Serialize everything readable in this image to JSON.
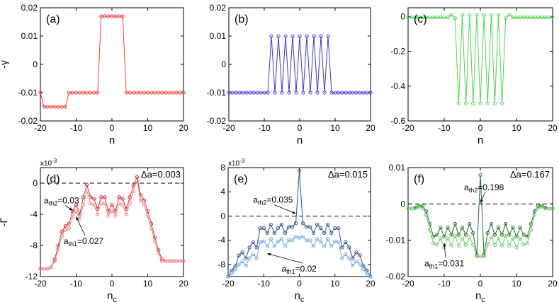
{
  "chart_data": [
    {
      "type": "line",
      "panel_label": "(a)",
      "ylabel": "-γ",
      "xlabel": "n",
      "xlim": [
        -20,
        20
      ],
      "ylim": [
        -0.02,
        0.02
      ],
      "xticks": [
        -20,
        -10,
        0,
        10,
        20
      ],
      "xtick_labels": [
        "-20",
        "-10",
        "0",
        "10",
        "20"
      ],
      "yticks": [
        -0.02,
        -0.01,
        0,
        0.01,
        0.02
      ],
      "ytick_labels": [
        "-0.02",
        "-0.01",
        "0",
        "0.01",
        "0.02"
      ],
      "series": [
        {
          "name": "-γ",
          "color": "#e8413c",
          "x": [
            -20,
            -19,
            -18,
            -17,
            -16,
            -15,
            -14,
            -13,
            -12,
            -11,
            -10,
            -9,
            -8,
            -7,
            -6,
            -5,
            -4,
            -3,
            -2,
            -1,
            0,
            1,
            2,
            3,
            4,
            5,
            6,
            7,
            8,
            9,
            10,
            11,
            12,
            13,
            14,
            15,
            16,
            17,
            18,
            19,
            20
          ],
          "y": [
            -0.01,
            -0.015,
            -0.015,
            -0.015,
            -0.015,
            -0.015,
            -0.015,
            -0.015,
            -0.01,
            -0.01,
            -0.01,
            -0.01,
            -0.01,
            -0.01,
            -0.01,
            -0.01,
            -0.01,
            0.017,
            0.017,
            0.017,
            0.017,
            0.017,
            0.017,
            0.017,
            -0.01,
            -0.01,
            -0.01,
            -0.01,
            -0.01,
            -0.01,
            -0.01,
            -0.01,
            -0.01,
            -0.01,
            -0.01,
            -0.01,
            -0.01,
            -0.01,
            -0.01,
            -0.01,
            -0.01
          ]
        }
      ]
    },
    {
      "type": "line",
      "panel_label": "(b)",
      "xlabel": "n",
      "xlim": [
        -20,
        20
      ],
      "ylim": [
        -0.02,
        0.02
      ],
      "xticks": [
        -20,
        -10,
        0,
        10,
        20
      ],
      "xtick_labels": [
        "-20",
        "-10",
        "0",
        "10",
        "20"
      ],
      "yticks": [
        -0.02,
        -0.01,
        0,
        0.01,
        0.02
      ],
      "ytick_labels": [
        "-0.02",
        "-0.01",
        "0",
        "0.01",
        "0.02"
      ],
      "series": [
        {
          "name": "-γ",
          "color": "#3a3ad0",
          "x": [
            -20,
            -19,
            -18,
            -17,
            -16,
            -15,
            -14,
            -13,
            -12,
            -11,
            -10,
            -9,
            -8,
            -7,
            -6,
            -5,
            -4,
            -3,
            -2,
            -1,
            0,
            1,
            2,
            3,
            4,
            5,
            6,
            7,
            8,
            9,
            10,
            11,
            12,
            13,
            14,
            15,
            16,
            17,
            18,
            19,
            20
          ],
          "y": [
            -0.01,
            -0.01,
            -0.01,
            -0.01,
            -0.01,
            -0.01,
            -0.01,
            -0.01,
            -0.01,
            -0.01,
            -0.01,
            -0.01,
            0.01,
            -0.01,
            0.01,
            -0.01,
            0.01,
            -0.01,
            0.01,
            -0.01,
            0.01,
            -0.01,
            0.01,
            -0.01,
            0.01,
            -0.01,
            0.01,
            -0.01,
            0.01,
            -0.01,
            -0.01,
            -0.01,
            -0.01,
            -0.01,
            -0.01,
            -0.01,
            -0.01,
            -0.01,
            -0.01,
            -0.01,
            -0.01
          ]
        }
      ]
    },
    {
      "type": "line",
      "panel_label": "(c)",
      "xlabel": "n",
      "xlim": [
        -20,
        20
      ],
      "ylim": [
        -0.6,
        0.05
      ],
      "xticks": [
        -20,
        -10,
        0,
        10,
        20
      ],
      "xtick_labels": [
        "-20",
        "-10",
        "0",
        "10",
        "20"
      ],
      "yticks": [
        -0.6,
        -0.4,
        -0.2,
        0
      ],
      "ytick_labels": [
        "-0.6",
        "-0.4",
        "-0.2",
        "0"
      ],
      "series": [
        {
          "name": "-γ",
          "color": "#52d452",
          "x": [
            -20,
            -19,
            -18,
            -17,
            -16,
            -15,
            -14,
            -13,
            -12,
            -11,
            -10,
            -9,
            -8,
            -7,
            -6,
            -5,
            -4,
            -3,
            -2,
            -1,
            0,
            1,
            2,
            3,
            4,
            5,
            6,
            7,
            8,
            9,
            10,
            11,
            12,
            13,
            14,
            15,
            16,
            17,
            18,
            19,
            20
          ],
          "y": [
            -0.005,
            -0.005,
            -0.005,
            -0.005,
            -0.005,
            -0.005,
            -0.005,
            -0.005,
            -0.005,
            -0.005,
            -0.005,
            -0.005,
            0.01,
            -0.01,
            -0.5,
            0.01,
            -0.5,
            0.01,
            -0.5,
            0.01,
            -0.5,
            0.01,
            -0.5,
            0.01,
            -0.5,
            0.01,
            -0.5,
            -0.01,
            0.01,
            -0.005,
            -0.005,
            -0.005,
            -0.005,
            -0.005,
            -0.005,
            -0.005,
            -0.005,
            -0.005,
            -0.005,
            -0.005,
            -0.005
          ]
        }
      ]
    },
    {
      "type": "line",
      "panel_label": "(d)",
      "ylabel": "-Γ",
      "xlabel": "n",
      "xlabel_sub": "c",
      "exponent_label": "x10",
      "exponent_power": "-3",
      "xlim": [
        -20,
        20
      ],
      "ylim": [
        -12,
        2
      ],
      "xticks": [
        -20,
        -10,
        0,
        10,
        20
      ],
      "xtick_labels": [
        "-20",
        "-10",
        "0",
        "10",
        "20"
      ],
      "yticks": [
        -12,
        -8,
        -4,
        0
      ],
      "ytick_labels": [
        "-12",
        "-8",
        "-4",
        "0"
      ],
      "delta_label": "Δa=0.003",
      "dashed_y": 0,
      "annotations": [
        {
          "prefix": "a",
          "sub": "th2",
          "suffix": "=0.03",
          "x": -19,
          "y": -2.6,
          "ax": -11,
          "ay": -3.5
        },
        {
          "prefix": "a",
          "sub": "th1",
          "suffix": "=0.027",
          "x": -13.5,
          "y": -7.8,
          "ax": -10,
          "ay": -4.3
        }
      ],
      "series": [
        {
          "name": "a_th2",
          "color": "#d03030",
          "x": [
            -20,
            -19,
            -18,
            -17,
            -16,
            -15,
            -14,
            -13,
            -12,
            -11,
            -10,
            -9,
            -8,
            -7,
            -6,
            -5,
            -4,
            -3,
            -2,
            -1,
            0,
            1,
            2,
            3,
            4,
            5,
            6,
            7,
            8,
            9,
            10,
            11,
            12,
            13,
            14,
            15,
            16,
            17,
            18,
            19,
            20
          ],
          "y": [
            -11,
            -11,
            -11,
            -10.8,
            -9.8,
            -8,
            -6.2,
            -5.5,
            -5.2,
            -3.6,
            -2.8,
            -4,
            -1.8,
            -0.2,
            -1.8,
            -2,
            -3.3,
            -1.8,
            -1.8,
            -3.6,
            -2.8,
            -3.6,
            -1.8,
            -2,
            -3.3,
            -1.8,
            -0.3,
            0.8,
            -1.5,
            -2.2,
            -3.6,
            -5.2,
            -7,
            -8.6,
            -9.8,
            -10,
            -10,
            -10,
            -10,
            -10,
            -10
          ]
        },
        {
          "name": "a_th1",
          "color": "#f08a8a",
          "x": [
            -20,
            -19,
            -18,
            -17,
            -16,
            -15,
            -14,
            -13,
            -12,
            -11,
            -10,
            -9,
            -8,
            -7,
            -6,
            -5,
            -4,
            -3,
            -2,
            -1,
            0,
            1,
            2,
            3,
            4,
            5,
            6,
            7,
            8,
            9,
            10,
            11,
            12,
            13,
            14,
            15,
            16,
            17,
            18,
            19,
            20
          ],
          "y": [
            -11,
            -11,
            -11,
            -10.8,
            -10,
            -8.5,
            -6.8,
            -6,
            -5.8,
            -4.3,
            -3.6,
            -4.6,
            -2.8,
            -1,
            -2.6,
            -2.8,
            -4,
            -2.6,
            -2.6,
            -4.2,
            -3.6,
            -4.2,
            -2.6,
            -2.8,
            -4,
            -2.6,
            -1,
            0.3,
            -2.2,
            -2.8,
            -4.2,
            -5.8,
            -7.5,
            -9,
            -10,
            -10,
            -10,
            -10,
            -10,
            -10,
            -10
          ]
        }
      ]
    },
    {
      "type": "line",
      "panel_label": "(e)",
      "xlabel": "n",
      "xlabel_sub": "c",
      "exponent_label": "x10",
      "exponent_power": "-3",
      "xlim": [
        -20,
        20
      ],
      "ylim": [
        -10,
        8
      ],
      "xticks": [
        -20,
        -10,
        0,
        10,
        20
      ],
      "xtick_labels": [
        "-20",
        "-10",
        "0",
        "10",
        "20"
      ],
      "yticks": [
        -8,
        -4,
        0,
        4,
        8
      ],
      "ytick_labels": [
        "-8",
        "-4",
        "0",
        "4",
        "8"
      ],
      "delta_label": "Δa=0.015",
      "dashed_y": 0,
      "annotations": [
        {
          "prefix": "a",
          "sub": "th2",
          "suffix": "=0.035",
          "x": -13,
          "y": 2.2,
          "ax": -1,
          "ay": 0.4
        },
        {
          "prefix": "a",
          "sub": "th1",
          "suffix": "=0.02",
          "x": -5,
          "y": -9.2,
          "ax": -9,
          "ay": -6.2
        }
      ],
      "series": [
        {
          "name": "a_th2",
          "color": "#30508a",
          "x": [
            -20,
            -19,
            -18,
            -17,
            -16,
            -15,
            -14,
            -13,
            -12,
            -11,
            -10,
            -9,
            -8,
            -7,
            -6,
            -5,
            -4,
            -3,
            -2,
            -1,
            0,
            1,
            2,
            3,
            4,
            5,
            6,
            7,
            8,
            9,
            10,
            11,
            12,
            13,
            14,
            15,
            16,
            17,
            18,
            19,
            20
          ],
          "y": [
            -10,
            -9,
            -8.3,
            -6.5,
            -6,
            -7,
            -5.2,
            -4.3,
            -5.2,
            -2,
            -2,
            -2.8,
            -1.4,
            -2.8,
            -2,
            -1.4,
            -2.8,
            -1.8,
            -1.8,
            -1.2,
            7.5,
            -1.2,
            -1.8,
            -1.8,
            -2.8,
            -1.4,
            -2,
            -2.8,
            -1.4,
            -2.8,
            -2,
            -2,
            -5.2,
            -4.3,
            -5.2,
            -7,
            -6,
            -6.5,
            -8.3,
            -9,
            -10
          ]
        },
        {
          "name": "a_th1",
          "color": "#6aaae8",
          "x": [
            -20,
            -19,
            -18,
            -17,
            -16,
            -15,
            -14,
            -13,
            -12,
            -11,
            -10,
            -9,
            -8,
            -7,
            -6,
            -5,
            -4,
            -3,
            -2,
            -1,
            0,
            1,
            2,
            3,
            4,
            5,
            6,
            7,
            8,
            9,
            10,
            11,
            12,
            13,
            14,
            15,
            16,
            17,
            18,
            19,
            20
          ],
          "y": [
            -10,
            -9.5,
            -8.8,
            -8,
            -7.5,
            -8.2,
            -7,
            -6.3,
            -7,
            -4.3,
            -4.2,
            -5,
            -3.8,
            -5,
            -4.2,
            -3.8,
            -5,
            -4,
            -4,
            -3.4,
            -3.6,
            -3.4,
            -4,
            -4,
            -5,
            -3.8,
            -4.2,
            -5,
            -3.8,
            -5,
            -4.2,
            -4.3,
            -7,
            -6.3,
            -7,
            -8.2,
            -7.5,
            -8,
            -8.8,
            -9.5,
            -10
          ]
        }
      ]
    },
    {
      "type": "line",
      "panel_label": "(f)",
      "xlabel": "n",
      "xlabel_sub": "c",
      "xlim": [
        -20,
        20
      ],
      "ylim": [
        -0.02,
        0.01
      ],
      "xticks": [
        -20,
        -10,
        0,
        10,
        20
      ],
      "xtick_labels": [
        "-20",
        "-10",
        "0",
        "10",
        "20"
      ],
      "yticks": [
        -0.02,
        -0.01,
        0,
        0.01
      ],
      "ytick_labels": [
        "-0.02",
        "-0.01",
        "0",
        "0.01"
      ],
      "delta_label": "Δa=0.167",
      "dashed_y": 0,
      "annotations": [
        {
          "prefix": "a",
          "sub": "th2",
          "suffix": "=0.198",
          "x": -4.5,
          "y": 0.0038,
          "ax": 0,
          "ay": 0.0003
        },
        {
          "prefix": "a",
          "sub": "th1",
          "suffix": "=0.031",
          "x": -15.5,
          "y": -0.0172,
          "ax": -10,
          "ay": -0.0108
        }
      ],
      "series": [
        {
          "name": "a_th2",
          "color": "#2a6a2a",
          "x": [
            -20,
            -19,
            -18,
            -17,
            -16,
            -15,
            -14,
            -13,
            -12,
            -11,
            -10,
            -9,
            -8,
            -7,
            -6,
            -5,
            -4,
            -3,
            -2,
            -1,
            0,
            1,
            2,
            3,
            4,
            5,
            6,
            7,
            8,
            9,
            10,
            11,
            12,
            13,
            14,
            15,
            16,
            17,
            18,
            19,
            20
          ],
          "y": [
            -0.0013,
            -0.0013,
            -0.001,
            -0.0005,
            -0.0005,
            -0.002,
            -0.0055,
            -0.009,
            -0.0085,
            -0.0065,
            -0.009,
            -0.0065,
            -0.0085,
            -0.0055,
            -0.0085,
            -0.0065,
            -0.0085,
            -0.0055,
            -0.008,
            -0.014,
            0.008,
            -0.014,
            -0.008,
            -0.0055,
            -0.0085,
            -0.0065,
            -0.0085,
            -0.0055,
            -0.0085,
            -0.0065,
            -0.009,
            -0.0065,
            -0.0085,
            -0.009,
            -0.0055,
            -0.002,
            -0.0005,
            -0.0005,
            -0.001,
            -0.0013,
            -0.0013
          ]
        },
        {
          "name": "a_th1",
          "color": "#66d466",
          "x": [
            -20,
            -19,
            -18,
            -17,
            -16,
            -15,
            -14,
            -13,
            -12,
            -11,
            -10,
            -9,
            -8,
            -7,
            -6,
            -5,
            -4,
            -3,
            -2,
            -1,
            0,
            1,
            2,
            3,
            4,
            5,
            6,
            7,
            8,
            9,
            10,
            11,
            12,
            13,
            14,
            15,
            16,
            17,
            18,
            19,
            20
          ],
          "y": [
            -0.0013,
            -0.0013,
            -0.0012,
            -0.0008,
            -0.0011,
            -0.003,
            -0.0072,
            -0.0108,
            -0.0112,
            -0.0095,
            -0.012,
            -0.0095,
            -0.0115,
            -0.0088,
            -0.0115,
            -0.0095,
            -0.0113,
            -0.0092,
            -0.0112,
            -0.0145,
            -0.0145,
            -0.0145,
            -0.0112,
            -0.0092,
            -0.0113,
            -0.0095,
            -0.0115,
            -0.0088,
            -0.0115,
            -0.0095,
            -0.012,
            -0.0095,
            -0.0112,
            -0.0108,
            -0.0072,
            -0.003,
            -0.0011,
            -0.0008,
            -0.0012,
            -0.0013,
            -0.0013
          ]
        }
      ]
    }
  ]
}
